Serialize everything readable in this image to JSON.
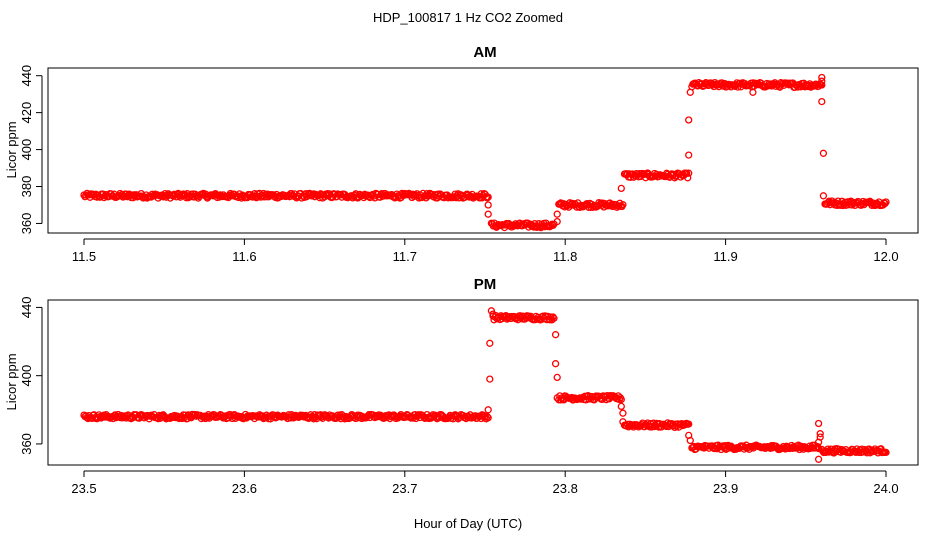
{
  "figure": {
    "title": "HDP_100817  1 Hz CO2 Zoomed",
    "xlabel": "Hour of Day (UTC)",
    "ylabel": "Licor ppm"
  },
  "colors": {
    "points": "#ff0000",
    "frame": "#000000"
  },
  "chart_data": [
    {
      "type": "scatter",
      "title": "AM",
      "ylabel": "Licor ppm",
      "xlim": [
        11.5,
        12.0
      ],
      "ylim": [
        357,
        442
      ],
      "xticks": [
        "11.5",
        "11.6",
        "11.7",
        "11.8",
        "11.9",
        "12.0"
      ],
      "yticks": [
        "360",
        "380",
        "400",
        "420",
        "440"
      ],
      "marker": "open-circle",
      "segments": [
        {
          "x_start": 11.5,
          "x_end": 11.752,
          "y": 375
        },
        {
          "x_start": 11.754,
          "x_end": 11.793,
          "y": 359
        },
        {
          "x_start": 11.796,
          "x_end": 11.836,
          "y": 370
        },
        {
          "x_start": 11.837,
          "x_end": 11.877,
          "y": 386
        },
        {
          "x_start": 11.879,
          "x_end": 11.96,
          "y": 435
        },
        {
          "x_start": 11.962,
          "x_end": 12.0,
          "y": 371
        }
      ],
      "transition_points": [
        {
          "x": 11.752,
          "y": 370
        },
        {
          "x": 11.752,
          "y": 365
        },
        {
          "x": 11.795,
          "y": 365
        },
        {
          "x": 11.795,
          "y": 361
        },
        {
          "x": 11.835,
          "y": 379
        },
        {
          "x": 11.877,
          "y": 397
        },
        {
          "x": 11.877,
          "y": 416
        },
        {
          "x": 11.878,
          "y": 431
        },
        {
          "x": 11.917,
          "y": 431
        },
        {
          "x": 11.96,
          "y": 439
        },
        {
          "x": 11.96,
          "y": 437
        },
        {
          "x": 11.96,
          "y": 426
        },
        {
          "x": 11.961,
          "y": 398
        },
        {
          "x": 11.961,
          "y": 375
        }
      ]
    },
    {
      "type": "scatter",
      "title": "PM",
      "ylabel": "Licor ppm",
      "xlim": [
        23.5,
        24.0
      ],
      "ylim": [
        350,
        442
      ],
      "xticks": [
        "23.5",
        "23.6",
        "23.7",
        "23.8",
        "23.9",
        "24.0"
      ],
      "yticks": [
        "360",
        "400",
        "440"
      ],
      "marker": "open-circle",
      "segments": [
        {
          "x_start": 23.5,
          "x_end": 23.752,
          "y": 376
        },
        {
          "x_start": 23.755,
          "x_end": 23.793,
          "y": 434
        },
        {
          "x_start": 23.796,
          "x_end": 23.835,
          "y": 387
        },
        {
          "x_start": 23.837,
          "x_end": 23.877,
          "y": 371
        },
        {
          "x_start": 23.879,
          "x_end": 23.958,
          "y": 358
        },
        {
          "x_start": 23.96,
          "x_end": 24.0,
          "y": 356
        }
      ],
      "transition_points": [
        {
          "x": 23.752,
          "y": 380
        },
        {
          "x": 23.753,
          "y": 398
        },
        {
          "x": 23.753,
          "y": 419
        },
        {
          "x": 23.754,
          "y": 438
        },
        {
          "x": 23.755,
          "y": 436
        },
        {
          "x": 23.794,
          "y": 424
        },
        {
          "x": 23.794,
          "y": 407
        },
        {
          "x": 23.795,
          "y": 399
        },
        {
          "x": 23.795,
          "y": 387
        },
        {
          "x": 23.835,
          "y": 382
        },
        {
          "x": 23.836,
          "y": 378
        },
        {
          "x": 23.836,
          "y": 373
        },
        {
          "x": 23.877,
          "y": 365
        },
        {
          "x": 23.878,
          "y": 362
        },
        {
          "x": 23.958,
          "y": 372
        },
        {
          "x": 23.959,
          "y": 366
        },
        {
          "x": 23.959,
          "y": 364
        },
        {
          "x": 23.958,
          "y": 361
        },
        {
          "x": 23.958,
          "y": 351
        }
      ]
    }
  ]
}
